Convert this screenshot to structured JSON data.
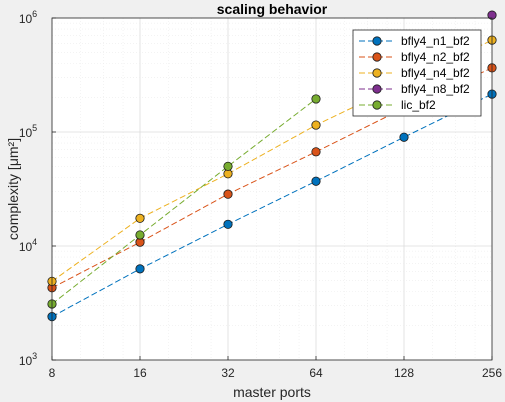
{
  "chart_data": {
    "type": "line",
    "title": "scaling behavior",
    "xlabel": "master ports",
    "ylabel": "complexity [μm²]",
    "x_scale": "log2",
    "y_scale": "log10",
    "xlim": [
      8,
      256
    ],
    "ylim": [
      1000,
      1000000
    ],
    "x_ticks": [
      8,
      16,
      32,
      64,
      128,
      256
    ],
    "x_tick_labels": [
      "8",
      "16",
      "32",
      "64",
      "128",
      "256"
    ],
    "y_ticks": [
      1000,
      10000,
      100000,
      1000000
    ],
    "y_tick_labels": [
      {
        "base": "10",
        "exp": "3"
      },
      {
        "base": "10",
        "exp": "4"
      },
      {
        "base": "10",
        "exp": "5"
      },
      {
        "base": "10",
        "exp": "6"
      }
    ],
    "grid": true,
    "legend_position": "top-right",
    "series": [
      {
        "name": "bfly4_n1_bf2",
        "color": "#0072bd",
        "x": [
          8,
          16,
          32,
          64,
          128,
          256
        ],
        "y": [
          2400,
          6300,
          15500,
          37000,
          90000,
          215000
        ]
      },
      {
        "name": "bfly4_n2_bf2",
        "color": "#d95319",
        "x": [
          8,
          16,
          32,
          64,
          128,
          256
        ],
        "y": [
          4300,
          10800,
          28500,
          67000,
          162000,
          365000
        ]
      },
      {
        "name": "bfly4_n4_bf2",
        "color": "#edb120",
        "x": [
          8,
          16,
          32,
          64,
          128,
          256
        ],
        "y": [
          4900,
          17500,
          43000,
          115000,
          270000,
          640000
        ]
      },
      {
        "name": "bfly4_n8_bf2",
        "color": "#7e2f8e",
        "x": [
          256
        ],
        "y": [
          1060000
        ]
      },
      {
        "name": "lic_bf2",
        "color": "#77ac30",
        "x": [
          8,
          16,
          32,
          64
        ],
        "y": [
          3100,
          12500,
          50000,
          195000
        ]
      }
    ]
  }
}
